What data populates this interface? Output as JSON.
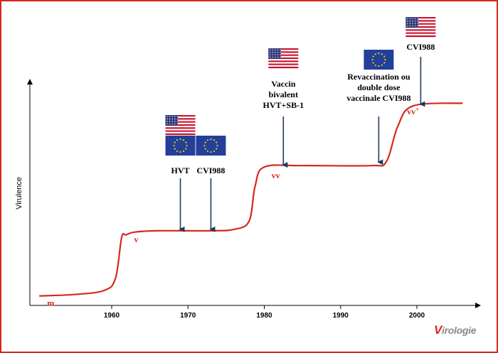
{
  "chart_data": {
    "type": "line",
    "title": "",
    "xlabel": "",
    "ylabel": "Virulence",
    "xlim": [
      1949,
      2006
    ],
    "ylim": [
      0,
      1
    ],
    "x_ticks": [
      1960,
      1970,
      1980,
      1990,
      2000
    ],
    "curve": [
      [
        1950.5,
        0.035
      ],
      [
        1955,
        0.04
      ],
      [
        1959,
        0.055
      ],
      [
        1960.5,
        0.1
      ],
      [
        1961.3,
        0.25
      ],
      [
        1961.9,
        0.26
      ],
      [
        1963,
        0.27
      ],
      [
        1966,
        0.275
      ],
      [
        1973,
        0.275
      ],
      [
        1976,
        0.28
      ],
      [
        1978,
        0.31
      ],
      [
        1978.8,
        0.44
      ],
      [
        1980,
        0.51
      ],
      [
        1985,
        0.515
      ],
      [
        1994,
        0.515
      ],
      [
        1996,
        0.53
      ],
      [
        1997.5,
        0.66
      ],
      [
        1999.5,
        0.735
      ],
      [
        2006,
        0.745
      ]
    ],
    "stages": [
      {
        "label": "m",
        "x": 1952,
        "y": 0.035
      },
      {
        "label": "v",
        "x": 1963.2,
        "y": 0.27
      },
      {
        "label": "vv",
        "x": 1981.5,
        "y": 0.505
      },
      {
        "label": "vv+",
        "x": 1999.5,
        "y": 0.74
      }
    ],
    "vaccines": [
      {
        "lines": [
          "HVT"
        ],
        "x": 1969,
        "flags": [
          "us",
          "eu"
        ]
      },
      {
        "lines": [
          "CVI988"
        ],
        "x": 1973,
        "flags": [
          "eu"
        ]
      },
      {
        "lines": [
          "Vaccin",
          "bivalent",
          "HVT+SB-1"
        ],
        "x": 1982.5,
        "flags": [
          "us"
        ]
      },
      {
        "lines": [
          "Revaccination ou",
          "double dose",
          "vaccinale CVI988"
        ],
        "x": 1995,
        "flags": [
          "eu"
        ]
      },
      {
        "lines": [
          "CVI988"
        ],
        "x": 2000.5,
        "flags": [
          "us"
        ]
      }
    ],
    "colors": {
      "curve": "#d5281f",
      "arrow": "#1f3b5c",
      "frame": "#d5281f"
    }
  },
  "brand": {
    "initial": "V",
    "rest": "irologie"
  }
}
